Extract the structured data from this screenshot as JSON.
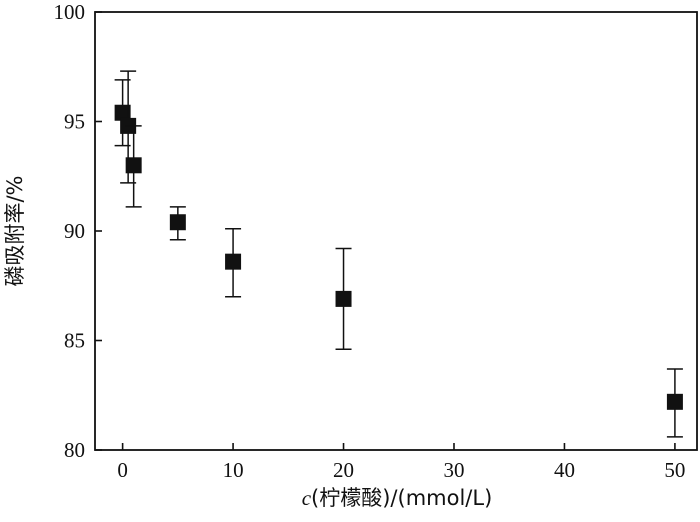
{
  "chart_data": {
    "type": "scatter",
    "title": "",
    "xlabel": "c(柠檬酸)/(mmol/L)",
    "xlabel_var": "c",
    "xlabel_rest": "(柠檬酸)/(mmol/L)",
    "ylabel": "磷吸附率/%",
    "xlim": [
      -2.5,
      52
    ],
    "ylim": [
      80,
      100
    ],
    "xticks": [
      0,
      10,
      20,
      30,
      40,
      50
    ],
    "yticks": [
      80,
      85,
      90,
      95,
      100
    ],
    "grid": false,
    "series": [
      {
        "marker": "square",
        "color": "#111111",
        "points": [
          {
            "x": 0,
            "y": 95.4,
            "err_low": 93.9,
            "err_high": 96.9
          },
          {
            "x": 0.5,
            "y": 94.8,
            "err_low": 92.2,
            "err_high": 97.3
          },
          {
            "x": 1,
            "y": 93.0,
            "err_low": 91.1,
            "err_high": 94.8
          },
          {
            "x": 5,
            "y": 90.4,
            "err_low": 89.6,
            "err_high": 91.1
          },
          {
            "x": 10,
            "y": 88.6,
            "err_low": 87.0,
            "err_high": 90.1
          },
          {
            "x": 20,
            "y": 86.9,
            "err_low": 84.6,
            "err_high": 89.2
          },
          {
            "x": 50,
            "y": 82.2,
            "err_low": 80.6,
            "err_high": 83.7
          }
        ]
      }
    ]
  }
}
